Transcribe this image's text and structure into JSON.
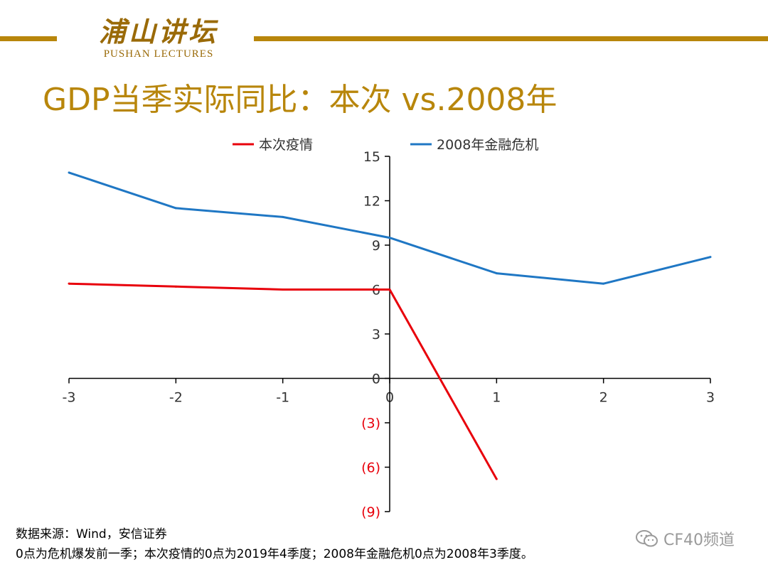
{
  "header": {
    "logo_cn": "浦山讲坛",
    "logo_en": "PUSHAN LECTURES",
    "title": "GDP当季实际同比：本次 vs.2008年",
    "brand_color": "#B8860B"
  },
  "chart_data": {
    "type": "line",
    "title": "",
    "xlabel": "",
    "ylabel": "",
    "x": [
      -3,
      -2,
      -1,
      0,
      1,
      2,
      3
    ],
    "xticks": [
      "-3",
      "-2",
      "-1",
      "0",
      "1",
      "2",
      "3"
    ],
    "yticks": [
      {
        "value": 15,
        "label": "15"
      },
      {
        "value": 12,
        "label": "12"
      },
      {
        "value": 9,
        "label": "9"
      },
      {
        "value": 6,
        "label": "6"
      },
      {
        "value": 3,
        "label": "3"
      },
      {
        "value": 0,
        "label": "0"
      },
      {
        "value": -3,
        "label": "(3)"
      },
      {
        "value": -6,
        "label": "(6)"
      },
      {
        "value": -9,
        "label": "(9)"
      }
    ],
    "ylim": [
      -9,
      15
    ],
    "xlim": [
      -3,
      3
    ],
    "grid": false,
    "legend_position": "top",
    "negative_label_color": "#E8000B",
    "series": [
      {
        "name": "本次疫情",
        "color": "#E8000B",
        "points": [
          [
            -3,
            6.4
          ],
          [
            -2,
            6.2
          ],
          [
            -1,
            6.0
          ],
          [
            0,
            6.0
          ],
          [
            1,
            -6.8
          ]
        ]
      },
      {
        "name": "2008年金融危机",
        "color": "#1F77C4",
        "points": [
          [
            -3,
            13.9
          ],
          [
            -2,
            11.5
          ],
          [
            -1,
            10.9
          ],
          [
            0,
            9.5
          ],
          [
            1,
            7.1
          ],
          [
            2,
            6.4
          ],
          [
            3,
            8.2
          ]
        ]
      }
    ]
  },
  "footer": {
    "source": "数据来源：Wind，安信证券",
    "note": "0点为危机爆发前一季；本次疫情的0点为2019年4季度；2008年金融危机0点为2008年3季度。",
    "watermark": "CF40频道",
    "watermark_icon": "wechat-icon"
  }
}
